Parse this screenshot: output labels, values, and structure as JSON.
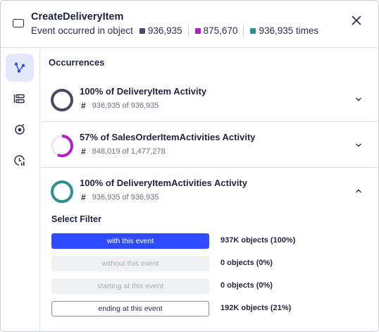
{
  "header": {
    "title": "CreateDeliveryItem",
    "subtitle_prefix": "Event occurred in object",
    "stats": [
      {
        "value": "936,935",
        "color": "#474b63"
      },
      {
        "value": "875,670",
        "color": "#b31fc7"
      },
      {
        "value": "936,935 times",
        "color": "#2a9392"
      }
    ],
    "close_icon": "close-icon"
  },
  "sidebar": {
    "items": [
      {
        "icon": "graph-nodes-icon",
        "active": true
      },
      {
        "icon": "server-list-icon",
        "active": false
      },
      {
        "icon": "target-icon",
        "active": false
      },
      {
        "icon": "clock-chart-icon",
        "active": false
      }
    ]
  },
  "main": {
    "section_title": "Occurrences",
    "occurrences": [
      {
        "title": "100% of DeliveryItem Activity",
        "hash": "#",
        "count": "936,935 of 936,935",
        "percent": 1.0,
        "color": "#474b63",
        "expanded": false
      },
      {
        "title": "57% of SalesOrderItemActivities Activity",
        "hash": "#",
        "count": "848,019 of 1,477,278",
        "percent": 0.57,
        "color": "#b31fc7",
        "expanded": false
      },
      {
        "title": "100% of DeliveryItemActivities Activity",
        "hash": "#",
        "count": "936,935 of 936,935",
        "percent": 1.0,
        "color": "#2a9392",
        "expanded": true
      }
    ],
    "filter": {
      "title": "Select Filter",
      "options": [
        {
          "label": "with this event",
          "stat": "937K objects (100%)",
          "state": "primary"
        },
        {
          "label": "without this event",
          "stat": "0 objects (0%)",
          "state": "disabled"
        },
        {
          "label": "starting at this event",
          "stat": "0 objects (0%)",
          "state": "disabled"
        },
        {
          "label": "ending at this event",
          "stat": "192K objects (21%)",
          "state": "outline"
        }
      ]
    }
  }
}
